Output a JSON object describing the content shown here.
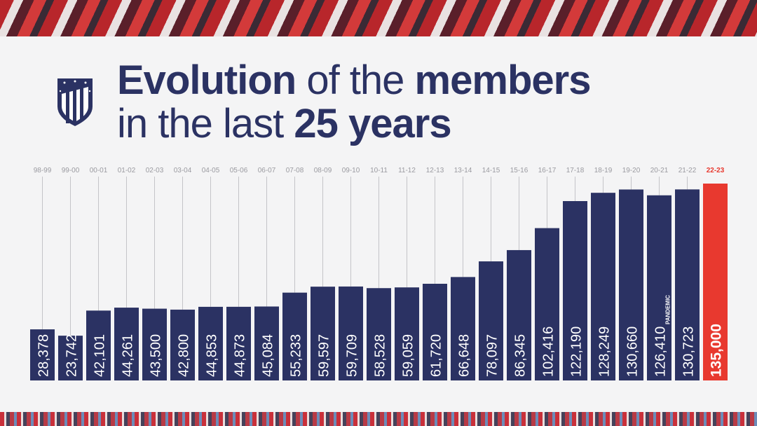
{
  "title": {
    "part1": "Evolution",
    "part2": " of the ",
    "part3": "members",
    "part4": "in the last ",
    "part5": "25 years"
  },
  "colors": {
    "navy": "#2b3263",
    "red": "#e8392f"
  },
  "chart_data": {
    "type": "bar",
    "title": "Evolution of the members in the last 25 years",
    "categories": [
      "98-99",
      "99-00",
      "00-01",
      "01-02",
      "02-03",
      "03-04",
      "04-05",
      "05-06",
      "06-07",
      "07-08",
      "08-09",
      "09-10",
      "10-11",
      "11-12",
      "12-13",
      "13-14",
      "14-15",
      "15-16",
      "16-17",
      "17-18",
      "18-19",
      "19-20",
      "20-21",
      "21-22",
      "22-23"
    ],
    "values": [
      28378,
      23742,
      42101,
      44261,
      43500,
      42800,
      44853,
      44873,
      45084,
      55233,
      59597,
      59709,
      58528,
      59059,
      61720,
      66648,
      78097,
      86345,
      102416,
      122190,
      128249,
      130660,
      126410,
      130723,
      135000
    ],
    "value_labels": [
      "28,378",
      "23,742",
      "42,101",
      "44,261",
      "43,500",
      "42,800",
      "44,853",
      "44,873",
      "45,084",
      "55,233",
      "59,597",
      "59,709",
      "58,528",
      "59,059",
      "61,720",
      "66,648",
      "78,097",
      "86,345",
      "102,416",
      "122,190",
      "128,249",
      "130,660",
      "126,410",
      "130,723",
      "135,000"
    ],
    "annotations": [
      {
        "category": "20-21",
        "text": "PANDEMIC"
      }
    ],
    "highlight": "22-23",
    "ylim": [
      -9000,
      135000
    ],
    "xlabel": "",
    "ylabel": "",
    "grid": false
  }
}
